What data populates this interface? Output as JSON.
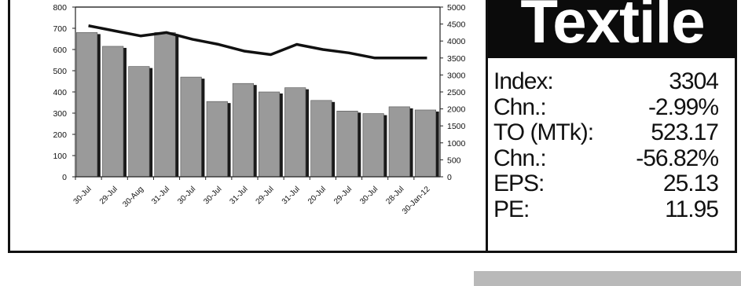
{
  "title": "Textile",
  "stats": [
    {
      "label": "Index:",
      "value": "3304"
    },
    {
      "label": "Chn.:",
      "value": "-2.99%"
    },
    {
      "label": "TO (MTk):",
      "value": "523.17"
    },
    {
      "label": "Chn.:",
      "value": "-56.82%"
    },
    {
      "label": "EPS:",
      "value": "25.13"
    },
    {
      "label": "PE:",
      "value": "11.95"
    }
  ],
  "chart_data": {
    "type": "bar",
    "categories": [
      "30-Jul",
      "29-Jul",
      "30-Aug",
      "31-Jul",
      "30-Jul",
      "30-Jul",
      "31-Jul",
      "29-Jul",
      "31-Jul",
      "20-Jul",
      "29-Jul",
      "30-Jul",
      "28-Jul",
      "30-Jan-12"
    ],
    "series": [
      {
        "values": [
          680,
          615,
          520,
          680,
          470,
          355,
          440,
          400,
          420,
          360,
          310,
          298,
          330,
          315
        ],
        "axis": "left",
        "type": "bar"
      },
      {
        "values": [
          4450,
          4300,
          4150,
          4250,
          4050,
          3900,
          3700,
          3600,
          3900,
          3750,
          3650,
          3500,
          3500,
          3500
        ],
        "axis": "right",
        "type": "line"
      }
    ],
    "y_left": {
      "ylim": [
        0,
        800
      ],
      "ticks": [
        0,
        100,
        200,
        300,
        400,
        500,
        600,
        700,
        800
      ]
    },
    "y_right": {
      "ylim": [
        0,
        5000
      ],
      "ticks": [
        0,
        500,
        1000,
        1500,
        2000,
        2500,
        3000,
        3500,
        4000,
        4500,
        5000
      ]
    },
    "colors": {
      "bar": "#9a9a9a",
      "bar_shadow": "#1a1a1a",
      "line": "#111111"
    },
    "grid": false
  }
}
